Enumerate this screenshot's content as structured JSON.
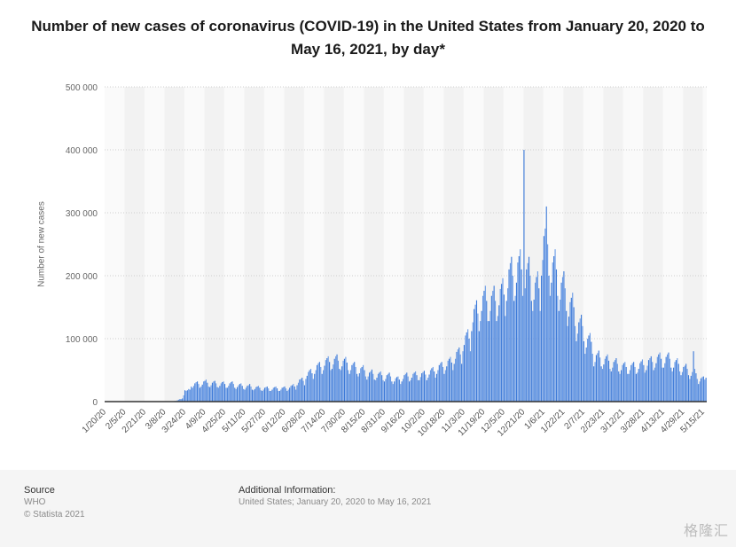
{
  "chart_data": {
    "type": "bar",
    "title": "Number of new cases of coronavirus (COVID-19) in the United States from January 20, 2020 to May 16, 2021, by day*",
    "ylabel": "Number of new cases",
    "xlabel": "",
    "ylim": [
      0,
      500000
    ],
    "y_ticks": [
      "0",
      "100 000",
      "200 000",
      "300 000",
      "400 000",
      "500 000"
    ],
    "x_tick_labels": [
      "1/20/20",
      "2/5/20",
      "2/21/20",
      "3/8/20",
      "3/24/20",
      "4/9/20",
      "4/25/20",
      "5/11/20",
      "5/27/20",
      "6/12/20",
      "6/28/20",
      "7/14/20",
      "7/30/20",
      "8/15/20",
      "8/31/20",
      "9/16/20",
      "10/2/20",
      "10/18/20",
      "11/3/20",
      "11/19/20",
      "12/5/20",
      "12/21/20",
      "1/6/21",
      "1/22/21",
      "2/7/21",
      "2/23/21",
      "3/12/21",
      "3/28/21",
      "4/13/21",
      "4/29/21",
      "5/15/21"
    ],
    "x_start": "2020-01-20",
    "x_end": "2021-05-16",
    "grid": true,
    "bar_color": "#3d7ad8",
    "values": [
      0,
      0,
      0,
      0,
      0,
      0,
      0,
      0,
      0,
      0,
      0,
      0,
      0,
      0,
      0,
      0,
      0,
      0,
      0,
      0,
      0,
      0,
      0,
      0,
      0,
      0,
      0,
      0,
      0,
      0,
      0,
      0,
      0,
      0,
      0,
      0,
      0,
      0,
      0,
      0,
      0,
      0,
      0,
      0,
      0,
      0,
      0,
      0,
      0,
      0,
      0,
      0,
      0,
      0,
      500,
      700,
      1000,
      1000,
      2000,
      3000,
      4000,
      4000,
      5000,
      10000,
      18000,
      17000,
      18000,
      20000,
      19000,
      24000,
      22000,
      25000,
      29000,
      31000,
      32000,
      28000,
      22000,
      24000,
      27000,
      32000,
      33000,
      35000,
      30000,
      24000,
      23000,
      26000,
      30000,
      32000,
      33000,
      29000,
      23000,
      22000,
      25000,
      29000,
      31000,
      32000,
      28000,
      22000,
      22000,
      25000,
      29000,
      31000,
      32000,
      28000,
      22000,
      20000,
      23000,
      26000,
      28000,
      29000,
      25000,
      20000,
      19000,
      22000,
      25000,
      26000,
      28000,
      24000,
      19000,
      18000,
      20000,
      23000,
      24000,
      25000,
      22000,
      18000,
      17000,
      19000,
      22000,
      23000,
      24000,
      21000,
      17000,
      17000,
      19000,
      22000,
      23000,
      24000,
      21000,
      17000,
      17000,
      19000,
      22000,
      23000,
      24000,
      21000,
      17000,
      19000,
      22000,
      25000,
      26000,
      28000,
      24000,
      19000,
      26000,
      30000,
      35000,
      36000,
      38000,
      33000,
      26000,
      36000,
      41000,
      47000,
      50000,
      52000,
      45000,
      36000,
      44000,
      50000,
      58000,
      61000,
      63000,
      55000,
      44000,
      50000,
      57000,
      66000,
      69000,
      72000,
      63000,
      50000,
      52000,
      59000,
      68000,
      72000,
      75000,
      65000,
      52000,
      50000,
      56000,
      65000,
      68000,
      71000,
      62000,
      50000,
      44000,
      50000,
      58000,
      61000,
      63000,
      55000,
      44000,
      40000,
      45000,
      53000,
      55000,
      58000,
      50000,
      40000,
      35000,
      40000,
      46000,
      48000,
      51000,
      44000,
      35000,
      34000,
      38000,
      44000,
      46000,
      48000,
      42000,
      34000,
      32000,
      36000,
      42000,
      44000,
      46000,
      40000,
      32000,
      28000,
      32000,
      37000,
      39000,
      40000,
      35000,
      28000,
      32000,
      36000,
      42000,
      44000,
      46000,
      40000,
      32000,
      34000,
      38000,
      44000,
      46000,
      48000,
      42000,
      34000,
      34000,
      39000,
      45000,
      47000,
      49000,
      43000,
      34000,
      38000,
      43000,
      50000,
      53000,
      55000,
      48000,
      38000,
      44000,
      50000,
      58000,
      61000,
      63000,
      55000,
      44000,
      50000,
      56000,
      65000,
      68000,
      71000,
      62000,
      50000,
      60000,
      68000,
      79000,
      83000,
      86000,
      75000,
      60000,
      80000,
      90000,
      105000,
      110000,
      115000,
      100000,
      80000,
      112000,
      126000,
      147000,
      154000,
      161000,
      140000,
      112000,
      128000,
      144000,
      168000,
      176000,
      184000,
      160000,
      128000,
      128000,
      144000,
      168000,
      176000,
      184000,
      160000,
      128000,
      136000,
      153000,
      179000,
      187000,
      196000,
      170000,
      136000,
      160000,
      180000,
      210000,
      220000,
      230000,
      200000,
      160000,
      168000,
      189000,
      221000,
      231000,
      242000,
      210000,
      168000,
      400000,
      180000,
      210000,
      220000,
      230000,
      200000,
      160000,
      144000,
      162000,
      189000,
      198000,
      207000,
      180000,
      144000,
      200000,
      225000,
      263000,
      275000,
      310000,
      250000,
      200000,
      168000,
      189000,
      221000,
      231000,
      242000,
      210000,
      168000,
      144000,
      162000,
      189000,
      198000,
      207000,
      180000,
      144000,
      120000,
      135000,
      158000,
      165000,
      173000,
      150000,
      120000,
      96000,
      108000,
      126000,
      132000,
      138000,
      120000,
      96000,
      76000,
      86000,
      100000,
      105000,
      109000,
      95000,
      76000,
      56000,
      63000,
      74000,
      77000,
      81000,
      70000,
      56000,
      52000,
      59000,
      68000,
      72000,
      75000,
      65000,
      52000,
      48000,
      54000,
      63000,
      66000,
      69000,
      60000,
      48000,
      44000,
      50000,
      58000,
      61000,
      63000,
      55000,
      44000,
      44000,
      50000,
      58000,
      61000,
      63000,
      55000,
      44000,
      46000,
      52000,
      61000,
      64000,
      67000,
      58000,
      46000,
      50000,
      57000,
      66000,
      69000,
      72000,
      63000,
      50000,
      54000,
      61000,
      71000,
      75000,
      78000,
      68000,
      54000,
      54000,
      61000,
      71000,
      75000,
      78000,
      68000,
      54000,
      48000,
      54000,
      63000,
      66000,
      69000,
      60000,
      48000,
      42000,
      47000,
      55000,
      57000,
      60000,
      52000,
      42000,
      36000,
      41000,
      47000,
      80000,
      52000,
      45000,
      36000,
      28000,
      32000,
      37000,
      39000,
      40000,
      35000,
      38000
    ]
  },
  "footer": {
    "source_heading": "Source",
    "source": "WHO",
    "copyright": "© Statista 2021",
    "additional_heading": "Additional Information:",
    "additional": "United States; January 20, 2020 to May 16, 2021"
  },
  "watermark": "格隆汇"
}
